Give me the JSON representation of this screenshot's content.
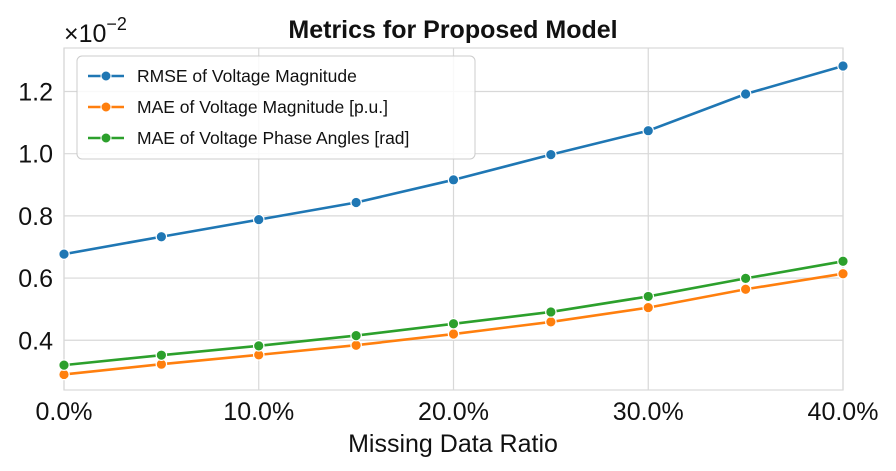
{
  "chart_data": {
    "type": "line",
    "title": "Metrics for Proposed Model",
    "xlabel": "Missing Data Ratio",
    "ylabel": "",
    "y_multiplier_prefix": "×10",
    "y_multiplier_exponent": "−2",
    "x": [
      0,
      5,
      10,
      15,
      20,
      25,
      30,
      35,
      40
    ],
    "xlim": [
      0,
      40
    ],
    "ylim": [
      0.24,
      1.34
    ],
    "x_ticks": [
      0,
      10,
      20,
      30,
      40
    ],
    "x_tick_labels": [
      "0.0%",
      "10.0%",
      "20.0%",
      "30.0%",
      "40.0%"
    ],
    "y_ticks": [
      0.4,
      0.6,
      0.8,
      1.0,
      1.2
    ],
    "y_tick_labels": [
      "0.4",
      "0.6",
      "0.8",
      "1.0",
      "1.2"
    ],
    "grid": true,
    "legend_position": "top-left",
    "series": [
      {
        "name": "RMSE of Voltage Magnitude",
        "color": "#1f77b4",
        "values": [
          0.677,
          0.733,
          0.788,
          0.843,
          0.916,
          0.997,
          1.074,
          1.192,
          1.282
        ]
      },
      {
        "name": "MAE of Voltage Magnitude [p.u.]",
        "color": "#ff7f0e",
        "values": [
          0.29,
          0.323,
          0.353,
          0.384,
          0.42,
          0.459,
          0.505,
          0.564,
          0.614
        ]
      },
      {
        "name": "MAE of Voltage Phase Angles [rad]",
        "color": "#2ca02c",
        "values": [
          0.32,
          0.352,
          0.382,
          0.415,
          0.453,
          0.491,
          0.541,
          0.599,
          0.654
        ]
      }
    ]
  }
}
